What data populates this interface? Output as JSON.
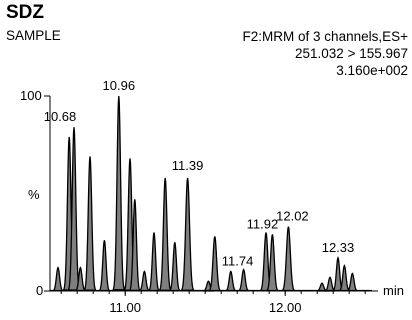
{
  "header": {
    "title": "SDZ",
    "subtitle": "SAMPLE",
    "info": [
      "F2:MRM of 3 channels,ES+",
      "251.032 > 155.967",
      "3.160e+002"
    ]
  },
  "chart_data": {
    "type": "line",
    "title": "SDZ",
    "subtitle": "SAMPLE",
    "xlabel": "min",
    "ylabel": "%",
    "x_ticks": [
      "11.00",
      "12.00"
    ],
    "y_ticks": [
      "100",
      "0"
    ],
    "xlim": [
      10.53,
      12.58
    ],
    "ylim": [
      0,
      100
    ],
    "line_color": "#000000",
    "fill_color": "#7f7f7f",
    "peaks": [
      {
        "rt": 10.58,
        "h": 12,
        "w": 0.01
      },
      {
        "rt": 10.65,
        "h": 79,
        "w": 0.011
      },
      {
        "rt": 10.68,
        "h": 84,
        "w": 0.011
      },
      {
        "rt": 10.72,
        "h": 12,
        "w": 0.01
      },
      {
        "rt": 10.78,
        "h": 69,
        "w": 0.011
      },
      {
        "rt": 10.87,
        "h": 26,
        "w": 0.01
      },
      {
        "rt": 10.96,
        "h": 100,
        "w": 0.011
      },
      {
        "rt": 11.03,
        "h": 68,
        "w": 0.011
      },
      {
        "rt": 11.06,
        "h": 47,
        "w": 0.01
      },
      {
        "rt": 11.12,
        "h": 10,
        "w": 0.01
      },
      {
        "rt": 11.18,
        "h": 30,
        "w": 0.01
      },
      {
        "rt": 11.25,
        "h": 58,
        "w": 0.011
      },
      {
        "rt": 11.31,
        "h": 25,
        "w": 0.01
      },
      {
        "rt": 11.39,
        "h": 58,
        "w": 0.012
      },
      {
        "rt": 11.52,
        "h": 5,
        "w": 0.01
      },
      {
        "rt": 11.56,
        "h": 28,
        "w": 0.011
      },
      {
        "rt": 11.66,
        "h": 10,
        "w": 0.01
      },
      {
        "rt": 11.74,
        "h": 11,
        "w": 0.01
      },
      {
        "rt": 11.88,
        "h": 30,
        "w": 0.011
      },
      {
        "rt": 11.92,
        "h": 29,
        "w": 0.011
      },
      {
        "rt": 12.02,
        "h": 33,
        "w": 0.012
      },
      {
        "rt": 12.23,
        "h": 4,
        "w": 0.01
      },
      {
        "rt": 12.28,
        "h": 7,
        "w": 0.01
      },
      {
        "rt": 12.33,
        "h": 17,
        "w": 0.01
      },
      {
        "rt": 12.37,
        "h": 13,
        "w": 0.01
      },
      {
        "rt": 12.42,
        "h": 9,
        "w": 0.01
      }
    ],
    "annotations": [
      {
        "label": "10.68",
        "rt": 10.68,
        "h": 84
      },
      {
        "label": "10.96",
        "rt": 10.96,
        "h": 100
      },
      {
        "label": "11.39",
        "rt": 11.39,
        "h": 58
      },
      {
        "label": "11.74",
        "rt": 11.74,
        "h": 11
      },
      {
        "label": "11.92",
        "rt": 11.92,
        "h": 29
      },
      {
        "label": "12.02",
        "rt": 12.02,
        "h": 33
      },
      {
        "label": "12.33",
        "rt": 12.33,
        "h": 17
      }
    ]
  }
}
